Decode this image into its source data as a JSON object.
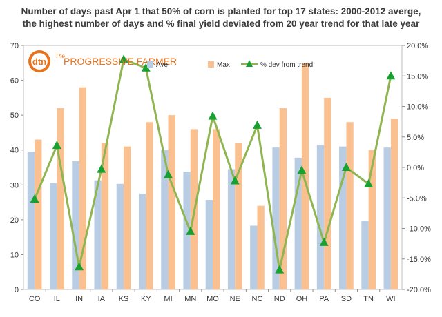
{
  "chart_data": {
    "type": "bar",
    "title": "Number of days past Apr 1 that 50% of corn is planted for top 17 states: 2000-2012 averge, the highest number of days and % final yield deviated from 20 year trend for that late year",
    "categories": [
      "CO",
      "IL",
      "IN",
      "IA",
      "KS",
      "KY",
      "MI",
      "MN",
      "MO",
      "NE",
      "NC",
      "ND",
      "OH",
      "PA",
      "SD",
      "TN",
      "WI"
    ],
    "series": [
      {
        "name": "Ave",
        "type": "bar",
        "axis": "left",
        "color": "#b8cce4",
        "values": [
          39.5,
          30.5,
          36.8,
          31.3,
          30.3,
          27.5,
          40.0,
          33.8,
          25.7,
          34.5,
          18.3,
          40.7,
          37.8,
          41.5,
          41.0,
          19.7,
          40.7
        ]
      },
      {
        "name": "Max",
        "type": "bar",
        "axis": "left",
        "color": "#fac090",
        "values": [
          43,
          52,
          58,
          42,
          41,
          48,
          50,
          46,
          46,
          42,
          24,
          52,
          65,
          55,
          48,
          40,
          49
        ]
      },
      {
        "name": "% dev from trend",
        "type": "line",
        "axis": "right",
        "color": "#8fb550",
        "marker_color": "#18a030",
        "values": [
          -5.2,
          3.6,
          -16.3,
          -0.3,
          17.7,
          16.3,
          -1.2,
          -10.5,
          8.4,
          -2.2,
          6.9,
          -16.8,
          -0.5,
          -12.3,
          0.0,
          -2.7,
          15.0
        ]
      }
    ],
    "ylim_left": [
      0,
      70
    ],
    "yticks_left": [
      "0",
      "10",
      "20",
      "30",
      "40",
      "50",
      "60",
      "70"
    ],
    "ylim_right": [
      -20,
      20
    ],
    "yticks_right": [
      "-20.0%",
      "-15.0%",
      "-10.0%",
      "-5.0%",
      "0.0%",
      "5.0%",
      "10.0%",
      "15.0%",
      "20.0%"
    ],
    "xlabel": "",
    "ylabel": "",
    "grid": false,
    "legend_position": "top-right"
  },
  "logo": {
    "brand": "dtn",
    "name": "PROGRESSIVE FARMER",
    "prefix": "The"
  }
}
